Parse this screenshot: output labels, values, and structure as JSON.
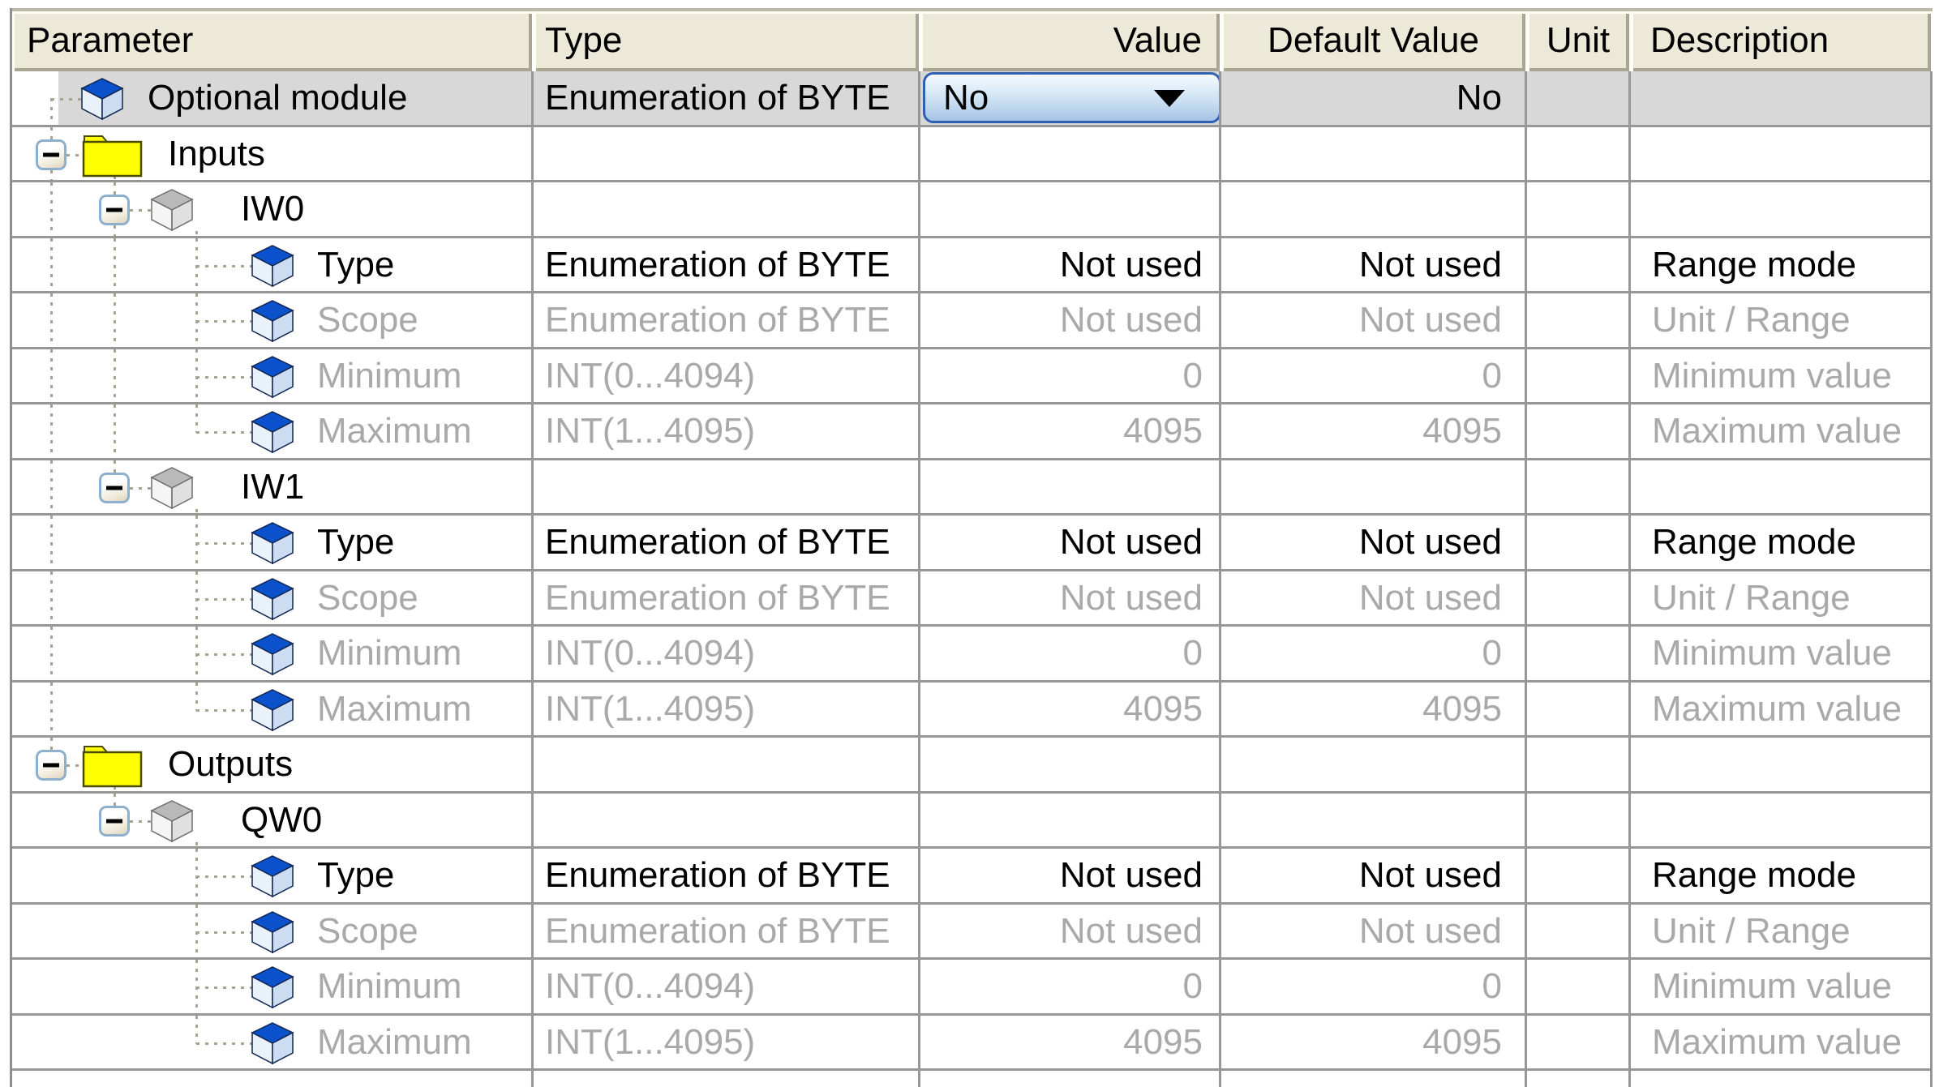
{
  "table": {
    "columns": [
      {
        "id": "parameter",
        "label": "Parameter"
      },
      {
        "id": "type",
        "label": "Type"
      },
      {
        "id": "value",
        "label": "Value"
      },
      {
        "id": "default_value",
        "label": "Default Value"
      },
      {
        "id": "unit",
        "label": "Unit"
      },
      {
        "id": "description",
        "label": "Description"
      }
    ],
    "dropdown": {
      "value": "No",
      "icon": "dropdown-arrow-icon"
    },
    "rows": [
      {
        "id": "optional-module",
        "label": "Optional module",
        "icon": "parameter-icon",
        "level": 0,
        "selected": true,
        "dim": false,
        "cells": {
          "type": "Enumeration of BYTE",
          "value": "No",
          "default": "No",
          "unit": "",
          "desc": ""
        },
        "value_is_dropdown": true,
        "tree": {
          "elbow": 0,
          "v_bothalf": [
            0
          ]
        }
      },
      {
        "id": "inputs",
        "label": "Inputs",
        "icon": "folder-icon",
        "level": 0,
        "selected": false,
        "dim": false,
        "cells": {
          "type": "",
          "value": "",
          "default": "",
          "unit": "",
          "desc": ""
        },
        "tree": {
          "expander": 0,
          "v_topstub": [
            0
          ],
          "v_botstub": [
            0
          ],
          "child": 1
        }
      },
      {
        "id": "iw0",
        "label": "IW0",
        "icon": "module-icon",
        "level": 1,
        "selected": false,
        "dim": false,
        "cells": {
          "type": "",
          "value": "",
          "default": "",
          "unit": "",
          "desc": ""
        },
        "tree": {
          "expander": 1,
          "v_full": [
            0
          ],
          "v_topstub": [
            1
          ],
          "v_botstub": [
            1
          ],
          "child": 2
        }
      },
      {
        "id": "iw0-type",
        "label": "Type",
        "icon": "parameter-icon",
        "level": 2,
        "selected": false,
        "dim": false,
        "cells": {
          "type": "Enumeration of BYTE",
          "value": "Not used",
          "default": "Not used",
          "unit": "",
          "desc": "Range mode"
        },
        "tree": {
          "v_full": [
            0,
            1,
            2
          ],
          "elbow": 2
        }
      },
      {
        "id": "iw0-scope",
        "label": "Scope",
        "icon": "parameter-icon",
        "level": 2,
        "selected": false,
        "dim": true,
        "cells": {
          "type": "Enumeration of BYTE",
          "value": "Not used",
          "default": "Not used",
          "unit": "",
          "desc": "Unit / Range"
        },
        "tree": {
          "v_full": [
            0,
            1,
            2
          ],
          "elbow": 2
        }
      },
      {
        "id": "iw0-minimum",
        "label": "Minimum",
        "icon": "parameter-icon",
        "level": 2,
        "selected": false,
        "dim": true,
        "cells": {
          "type": "INT(0...4094)",
          "value": "0",
          "default": "0",
          "unit": "",
          "desc": "Minimum value"
        },
        "tree": {
          "v_full": [
            0,
            1,
            2
          ],
          "elbow": 2
        }
      },
      {
        "id": "iw0-maximum",
        "label": "Maximum",
        "icon": "parameter-icon",
        "level": 2,
        "selected": false,
        "dim": true,
        "cells": {
          "type": "INT(1...4095)",
          "value": "4095",
          "default": "4095",
          "unit": "",
          "desc": "Maximum value"
        },
        "tree": {
          "v_full": [
            0,
            1
          ],
          "v_tophalf": [
            2
          ],
          "elbow": 2
        }
      },
      {
        "id": "iw1",
        "label": "IW1",
        "icon": "module-icon",
        "level": 1,
        "selected": false,
        "dim": false,
        "cells": {
          "type": "",
          "value": "",
          "default": "",
          "unit": "",
          "desc": ""
        },
        "tree": {
          "expander": 1,
          "v_full": [
            0
          ],
          "v_topstub": [
            1
          ],
          "child": 2
        }
      },
      {
        "id": "iw1-type",
        "label": "Type",
        "icon": "parameter-icon",
        "level": 2,
        "selected": false,
        "dim": false,
        "cells": {
          "type": "Enumeration of BYTE",
          "value": "Not used",
          "default": "Not used",
          "unit": "",
          "desc": "Range mode"
        },
        "tree": {
          "v_full": [
            0,
            2
          ],
          "elbow": 2
        }
      },
      {
        "id": "iw1-scope",
        "label": "Scope",
        "icon": "parameter-icon",
        "level": 2,
        "selected": false,
        "dim": true,
        "cells": {
          "type": "Enumeration of BYTE",
          "value": "Not used",
          "default": "Not used",
          "unit": "",
          "desc": "Unit / Range"
        },
        "tree": {
          "v_full": [
            0,
            2
          ],
          "elbow": 2
        }
      },
      {
        "id": "iw1-minimum",
        "label": "Minimum",
        "icon": "parameter-icon",
        "level": 2,
        "selected": false,
        "dim": true,
        "cells": {
          "type": "INT(0...4094)",
          "value": "0",
          "default": "0",
          "unit": "",
          "desc": "Minimum value"
        },
        "tree": {
          "v_full": [
            0,
            2
          ],
          "elbow": 2
        }
      },
      {
        "id": "iw1-maximum",
        "label": "Maximum",
        "icon": "parameter-icon",
        "level": 2,
        "selected": false,
        "dim": true,
        "cells": {
          "type": "INT(1...4095)",
          "value": "4095",
          "default": "4095",
          "unit": "",
          "desc": "Maximum value"
        },
        "tree": {
          "v_full": [
            0
          ],
          "v_tophalf": [
            2
          ],
          "elbow": 2
        }
      },
      {
        "id": "outputs",
        "label": "Outputs",
        "icon": "folder-icon",
        "level": 0,
        "selected": false,
        "dim": false,
        "cells": {
          "type": "",
          "value": "",
          "default": "",
          "unit": "",
          "desc": ""
        },
        "tree": {
          "expander": 0,
          "v_topstub": [
            0
          ],
          "child": 1
        }
      },
      {
        "id": "qw0",
        "label": "QW0",
        "icon": "module-icon",
        "level": 1,
        "selected": false,
        "dim": false,
        "cells": {
          "type": "",
          "value": "",
          "default": "",
          "unit": "",
          "desc": ""
        },
        "tree": {
          "expander": 1,
          "v_topstub": [
            1
          ],
          "child": 2
        }
      },
      {
        "id": "qw0-type",
        "label": "Type",
        "icon": "parameter-icon",
        "level": 2,
        "selected": false,
        "dim": false,
        "cells": {
          "type": "Enumeration of BYTE",
          "value": "Not used",
          "default": "Not used",
          "unit": "",
          "desc": "Range mode"
        },
        "tree": {
          "v_full": [
            2
          ],
          "elbow": 2
        }
      },
      {
        "id": "qw0-scope",
        "label": "Scope",
        "icon": "parameter-icon",
        "level": 2,
        "selected": false,
        "dim": true,
        "cells": {
          "type": "Enumeration of BYTE",
          "value": "Not used",
          "default": "Not used",
          "unit": "",
          "desc": "Unit / Range"
        },
        "tree": {
          "v_full": [
            2
          ],
          "elbow": 2
        }
      },
      {
        "id": "qw0-minimum",
        "label": "Minimum",
        "icon": "parameter-icon",
        "level": 2,
        "selected": false,
        "dim": true,
        "cells": {
          "type": "INT(0...4094)",
          "value": "0",
          "default": "0",
          "unit": "",
          "desc": "Minimum value"
        },
        "tree": {
          "v_full": [
            2
          ],
          "elbow": 2
        }
      },
      {
        "id": "qw0-maximum",
        "label": "Maximum",
        "icon": "parameter-icon",
        "level": 2,
        "selected": false,
        "dim": true,
        "cells": {
          "type": "INT(1...4095)",
          "value": "4095",
          "default": "4095",
          "unit": "",
          "desc": "Maximum value"
        },
        "tree": {
          "v_tophalf": [
            2
          ],
          "elbow": 2
        }
      }
    ]
  },
  "colors": {
    "header_bg": "#ece9d8",
    "grid_line": "#979797",
    "selected_row": "#d8d8d8",
    "disabled_text": "#a9a9a9",
    "tree_dots": "#a8a492",
    "dropdown_border": "#2e61b2",
    "folder_yellow": "#ffff00",
    "parameter_cube_blue": "#0b51cb"
  }
}
